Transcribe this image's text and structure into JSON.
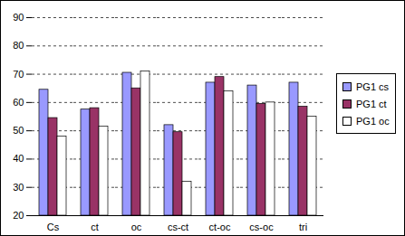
{
  "chart_data": {
    "type": "bar",
    "categories": [
      "Cs",
      "ct",
      "oc",
      "cs-ct",
      "ct-oc",
      "cs-oc",
      "tri"
    ],
    "series": [
      {
        "name": "PG1 cs",
        "color": "#9999ff",
        "values": [
          64.5,
          57.5,
          70.5,
          52,
          67,
          66,
          67
        ]
      },
      {
        "name": "PG1 ct",
        "color": "#993366",
        "values": [
          54.5,
          58,
          65,
          49.5,
          69,
          59.5,
          58.5
        ]
      },
      {
        "name": "PG1 oc",
        "color": "#ffffff",
        "values": [
          48,
          51.5,
          71,
          32,
          64,
          60,
          55
        ]
      }
    ],
    "ylim": [
      20,
      90
    ],
    "yticks": [
      20,
      30,
      40,
      50,
      60,
      70,
      80,
      90
    ],
    "grid": true,
    "legend": "right"
  }
}
